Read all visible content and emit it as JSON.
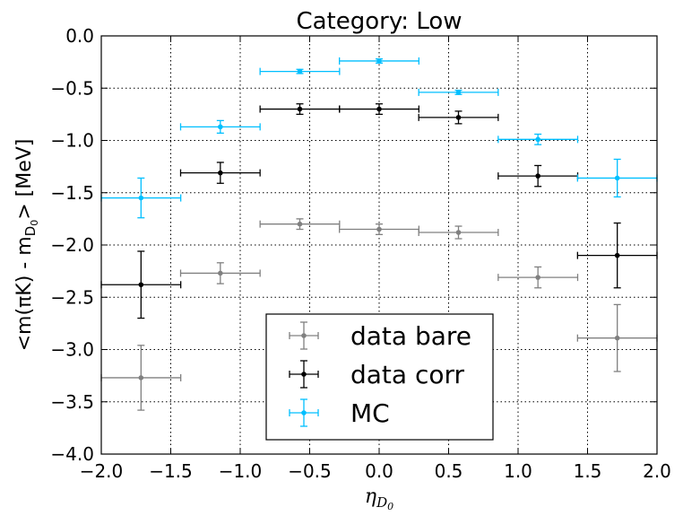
{
  "chart_data": {
    "type": "scatter",
    "title": "Category: Low",
    "xlabel_base": "η",
    "xlabel_sub": "D",
    "xlabel_subsub": "0",
    "ylabel_pre": "<m(πK) - m",
    "ylabel_sub": "D",
    "ylabel_subsub": "0",
    "ylabel_post": "> [MeV]",
    "xlim": [
      -2.0,
      2.0
    ],
    "ylim": [
      -4.0,
      0.0
    ],
    "xticks": [
      "−2.0",
      "−1.5",
      "−1.0",
      "−0.5",
      "0.0",
      "0.5",
      "1.0",
      "1.5",
      "2.0"
    ],
    "yticks": [
      "0.0",
      "−0.5",
      "−1.0",
      "−1.5",
      "−2.0",
      "−2.5",
      "−3.0",
      "−3.5",
      "−4.0"
    ],
    "grid": true,
    "legend_position": "bottom-center",
    "series": [
      {
        "name": "data bare",
        "color": "#808080",
        "points": [
          {
            "x": -1.714,
            "xerr": 0.286,
            "y": -3.27,
            "yerr": 0.31
          },
          {
            "x": -1.143,
            "xerr": 0.286,
            "y": -2.27,
            "yerr": 0.1
          },
          {
            "x": -0.571,
            "xerr": 0.286,
            "y": -1.8,
            "yerr": 0.05
          },
          {
            "x": 0.0,
            "xerr": 0.286,
            "y": -1.85,
            "yerr": 0.05
          },
          {
            "x": 0.571,
            "xerr": 0.286,
            "y": -1.88,
            "yerr": 0.06
          },
          {
            "x": 1.143,
            "xerr": 0.286,
            "y": -2.31,
            "yerr": 0.1
          },
          {
            "x": 1.714,
            "xerr": 0.286,
            "y": -2.89,
            "yerr": 0.32
          }
        ]
      },
      {
        "name": "data corr",
        "color": "#000000",
        "points": [
          {
            "x": -1.714,
            "xerr": 0.286,
            "y": -2.38,
            "yerr": 0.32
          },
          {
            "x": -1.143,
            "xerr": 0.286,
            "y": -1.31,
            "yerr": 0.1
          },
          {
            "x": -0.571,
            "xerr": 0.286,
            "y": -0.7,
            "yerr": 0.05
          },
          {
            "x": 0.0,
            "xerr": 0.286,
            "y": -0.7,
            "yerr": 0.05
          },
          {
            "x": 0.571,
            "xerr": 0.286,
            "y": -0.78,
            "yerr": 0.06
          },
          {
            "x": 1.143,
            "xerr": 0.286,
            "y": -1.34,
            "yerr": 0.1
          },
          {
            "x": 1.714,
            "xerr": 0.286,
            "y": -2.1,
            "yerr": 0.31
          }
        ]
      },
      {
        "name": "MC",
        "color": "#00bfff",
        "points": [
          {
            "x": -1.714,
            "xerr": 0.286,
            "y": -1.55,
            "yerr": 0.19
          },
          {
            "x": -1.143,
            "xerr": 0.286,
            "y": -0.87,
            "yerr": 0.06
          },
          {
            "x": -0.571,
            "xerr": 0.286,
            "y": -0.34,
            "yerr": 0.02
          },
          {
            "x": 0.0,
            "xerr": 0.286,
            "y": -0.24,
            "yerr": 0.02
          },
          {
            "x": 0.571,
            "xerr": 0.286,
            "y": -0.54,
            "yerr": 0.02
          },
          {
            "x": 1.143,
            "xerr": 0.286,
            "y": -0.99,
            "yerr": 0.05
          },
          {
            "x": 1.714,
            "xerr": 0.286,
            "y": -1.36,
            "yerr": 0.18
          }
        ]
      }
    ]
  }
}
